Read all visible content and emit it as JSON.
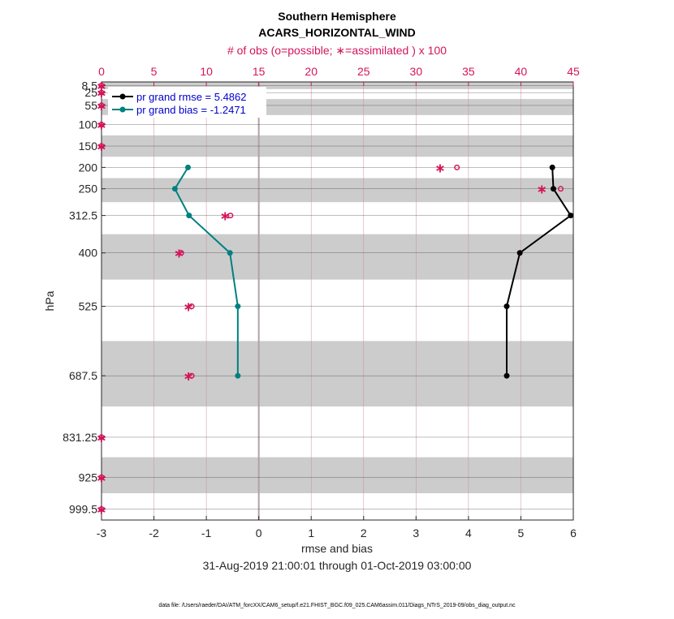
{
  "chart_data": {
    "type": "line",
    "title": "Southern Hemisphere",
    "subtitle": "ACARS_HORIZONTAL_WIND",
    "top_axis_label": "# of obs (o=possible; ∗=assimilated ) x 100",
    "xlabel": "rmse and bias",
    "ylabel": "hPa",
    "date_range": "31-Aug-2019 21:00:01 through 01-Oct-2019 03:00:00",
    "footnote": "data file: /Users/raeder/DAI/ATM_forcXX/CAM6_setup/f.e21.FHIST_BGC.f09_025.CAM6assim.011/Diags_NTrS_2019-09/obs_diag_output.nc",
    "xlim": [
      -3,
      6
    ],
    "x_ticks": [
      -3,
      -2,
      -1,
      0,
      1,
      2,
      3,
      4,
      5,
      6
    ],
    "top_xlim": [
      0,
      45
    ],
    "top_ticks": [
      0,
      5,
      10,
      15,
      20,
      25,
      30,
      35,
      40,
      45
    ],
    "y_levels": [
      "8.5",
      "25",
      "55",
      "100",
      "150",
      "200",
      "250",
      "312.5",
      "400",
      "525",
      "687.5",
      "831.25",
      "925",
      "999.5"
    ],
    "y_scale": "linear, reversed",
    "grid": true,
    "legend_position": "top-left",
    "colors": {
      "rmse": "#000000",
      "bias": "#008080",
      "obs": "#d4145a",
      "band": "#cccccc",
      "zero_line": "#b5a0a8"
    },
    "series": [
      {
        "name": "pr grand rmse = 5.4862",
        "color": "#000000",
        "points": [
          [
            5.6,
            200
          ],
          [
            5.62,
            250
          ],
          [
            5.95,
            312.5
          ],
          [
            4.98,
            400
          ],
          [
            4.73,
            525
          ],
          [
            4.73,
            687.5
          ]
        ]
      },
      {
        "name": "pr grand bias = -1.2471",
        "color": "#008080",
        "points": [
          [
            -1.35,
            200
          ],
          [
            -1.6,
            250
          ],
          [
            -1.33,
            312.5
          ],
          [
            -0.55,
            400
          ],
          [
            -0.4,
            525
          ],
          [
            -0.4,
            687.5
          ]
        ]
      }
    ],
    "obs_possible": [
      [
        0,
        8.5
      ],
      [
        0,
        25
      ],
      [
        0,
        55
      ],
      [
        0,
        100
      ],
      [
        0,
        150
      ],
      [
        33.9,
        200
      ],
      [
        43.8,
        250
      ],
      [
        12.3,
        312.5
      ],
      [
        7.6,
        400
      ],
      [
        8.6,
        525
      ],
      [
        8.6,
        687.5
      ],
      [
        0,
        831.25
      ],
      [
        0,
        925
      ],
      [
        0,
        999.5
      ]
    ],
    "obs_assimilated": [
      [
        0,
        8.5
      ],
      [
        0,
        25
      ],
      [
        0,
        55
      ],
      [
        0,
        100
      ],
      [
        0,
        150
      ],
      [
        32.3,
        200
      ],
      [
        42.0,
        250
      ],
      [
        11.8,
        312.5
      ],
      [
        7.4,
        400
      ],
      [
        8.3,
        525
      ],
      [
        8.3,
        687.5
      ],
      [
        0,
        831.25
      ],
      [
        0,
        925
      ],
      [
        0,
        999.5
      ]
    ]
  }
}
